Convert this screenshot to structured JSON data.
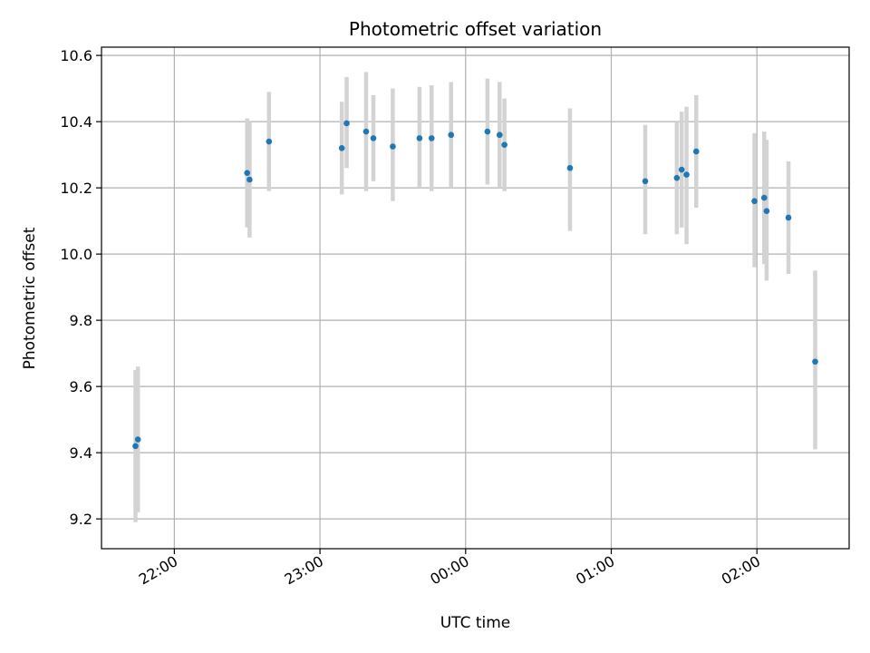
{
  "chart_data": {
    "type": "scatter",
    "title": "Photometric offset variation",
    "xlabel": "UTC time",
    "ylabel": "Photometric offset",
    "x_unit": "hours (UTC, continuing past midnight)",
    "xlim": [
      "21:30",
      "02:38"
    ],
    "ylim": [
      9.11,
      10.625
    ],
    "grid": true,
    "x_ticks": [
      "22:00",
      "23:00",
      "00:00",
      "01:00",
      "02:00"
    ],
    "y_ticks": [
      "9.2",
      "9.4",
      "9.6",
      "9.8",
      "10.0",
      "10.2",
      "10.4",
      "10.6"
    ],
    "colors": {
      "points": "#1f77b4",
      "errorbars": "#d3d3d3",
      "grid": "#b0b0b0"
    },
    "series": [
      {
        "points": [
          {
            "x": "21:44",
            "y": 9.42,
            "err_low": 9.19,
            "err_high": 9.65
          },
          {
            "x": "21:45",
            "y": 9.44,
            "err_low": 9.22,
            "err_high": 9.66
          },
          {
            "x": "22:30",
            "y": 10.245,
            "err_low": 10.08,
            "err_high": 10.41
          },
          {
            "x": "22:31",
            "y": 10.225,
            "err_low": 10.05,
            "err_high": 10.4
          },
          {
            "x": "22:39",
            "y": 10.34,
            "err_low": 10.19,
            "err_high": 10.49
          },
          {
            "x": "23:09",
            "y": 10.32,
            "err_low": 10.18,
            "err_high": 10.46
          },
          {
            "x": "23:11",
            "y": 10.395,
            "err_low": 10.26,
            "err_high": 10.535
          },
          {
            "x": "23:19",
            "y": 10.37,
            "err_low": 10.19,
            "err_high": 10.55
          },
          {
            "x": "23:22",
            "y": 10.35,
            "err_low": 10.22,
            "err_high": 10.48
          },
          {
            "x": "23:30",
            "y": 10.325,
            "err_low": 10.16,
            "err_high": 10.5
          },
          {
            "x": "23:41",
            "y": 10.35,
            "err_low": 10.2,
            "err_high": 10.505
          },
          {
            "x": "23:46",
            "y": 10.35,
            "err_low": 10.19,
            "err_high": 10.51
          },
          {
            "x": "23:54",
            "y": 10.36,
            "err_low": 10.2,
            "err_high": 10.52
          },
          {
            "x": "00:09",
            "y": 10.37,
            "err_low": 10.21,
            "err_high": 10.53
          },
          {
            "x": "00:14",
            "y": 10.36,
            "err_low": 10.2,
            "err_high": 10.52
          },
          {
            "x": "00:16",
            "y": 10.33,
            "err_low": 10.19,
            "err_high": 10.47
          },
          {
            "x": "00:43",
            "y": 10.26,
            "err_low": 10.07,
            "err_high": 10.44
          },
          {
            "x": "01:14",
            "y": 10.22,
            "err_low": 10.06,
            "err_high": 10.39
          },
          {
            "x": "01:27",
            "y": 10.23,
            "err_low": 10.06,
            "err_high": 10.4
          },
          {
            "x": "01:29",
            "y": 10.255,
            "err_low": 10.08,
            "err_high": 10.43
          },
          {
            "x": "01:31",
            "y": 10.24,
            "err_low": 10.03,
            "err_high": 10.445
          },
          {
            "x": "01:35",
            "y": 10.31,
            "err_low": 10.14,
            "err_high": 10.48
          },
          {
            "x": "01:59",
            "y": 10.16,
            "err_low": 9.96,
            "err_high": 10.365
          },
          {
            "x": "02:03",
            "y": 10.17,
            "err_low": 9.97,
            "err_high": 10.37
          },
          {
            "x": "02:04",
            "y": 10.13,
            "err_low": 9.92,
            "err_high": 10.345
          },
          {
            "x": "02:13",
            "y": 10.11,
            "err_low": 9.94,
            "err_high": 10.28
          },
          {
            "x": "02:24",
            "y": 9.675,
            "err_low": 9.41,
            "err_high": 9.95
          }
        ]
      }
    ]
  }
}
